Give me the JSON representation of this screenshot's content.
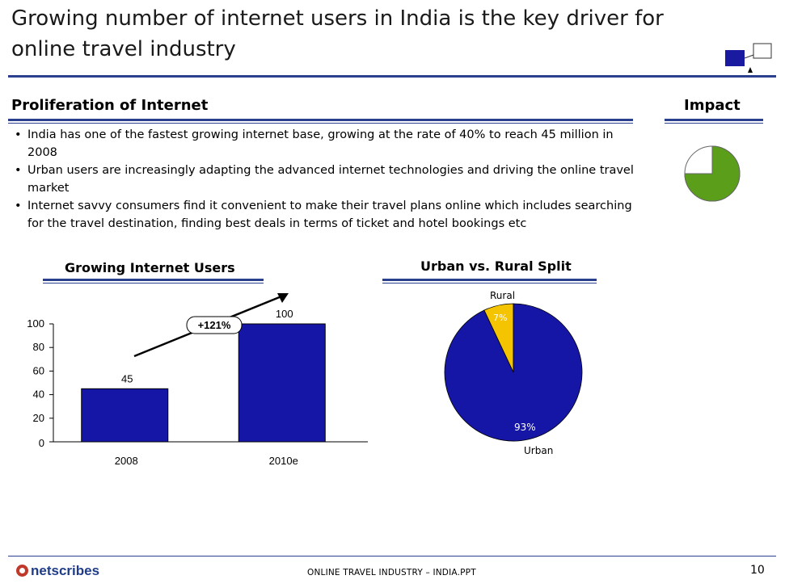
{
  "title": "Growing number of internet users in India is the key driver for online travel industry",
  "section_heading": "Proliferation of Internet",
  "impact": {
    "label": "Impact",
    "fill_fraction": 0.75,
    "fill_color": "#5a9e1a"
  },
  "bullets": [
    "India has one of the fastest growing internet base, growing at the rate of 40% to reach 45 million in 2008",
    "Urban users are increasingly adapting the advanced internet technologies and driving the online travel market",
    "Internet savvy consumers find it convenient to make their travel plans online which includes searching for the travel destination, finding best deals in terms of ticket and hotel bookings etc"
  ],
  "chart_data": [
    {
      "type": "bar",
      "title": "Growing Internet Users",
      "categories": [
        "2008",
        "2010e"
      ],
      "values": [
        45,
        100
      ],
      "ylim": [
        0,
        100
      ],
      "yticks": [
        "0",
        "20",
        "40",
        "60",
        "80",
        "100"
      ],
      "value_labels": [
        "45",
        "100"
      ],
      "growth_label": "+121%",
      "bar_color": "#1616a6"
    },
    {
      "type": "pie",
      "title": "Urban vs. Rural Split",
      "labels": [
        "Rural",
        "Urban"
      ],
      "values": [
        7,
        93
      ],
      "value_labels": [
        "7%",
        "93%"
      ],
      "colors": [
        "#f5c400",
        "#1616a6"
      ]
    }
  ],
  "footer": {
    "brand": "netscribes",
    "text": "ONLINE TRAVEL INDUSTRY – INDIA.PPT",
    "page": "10"
  }
}
